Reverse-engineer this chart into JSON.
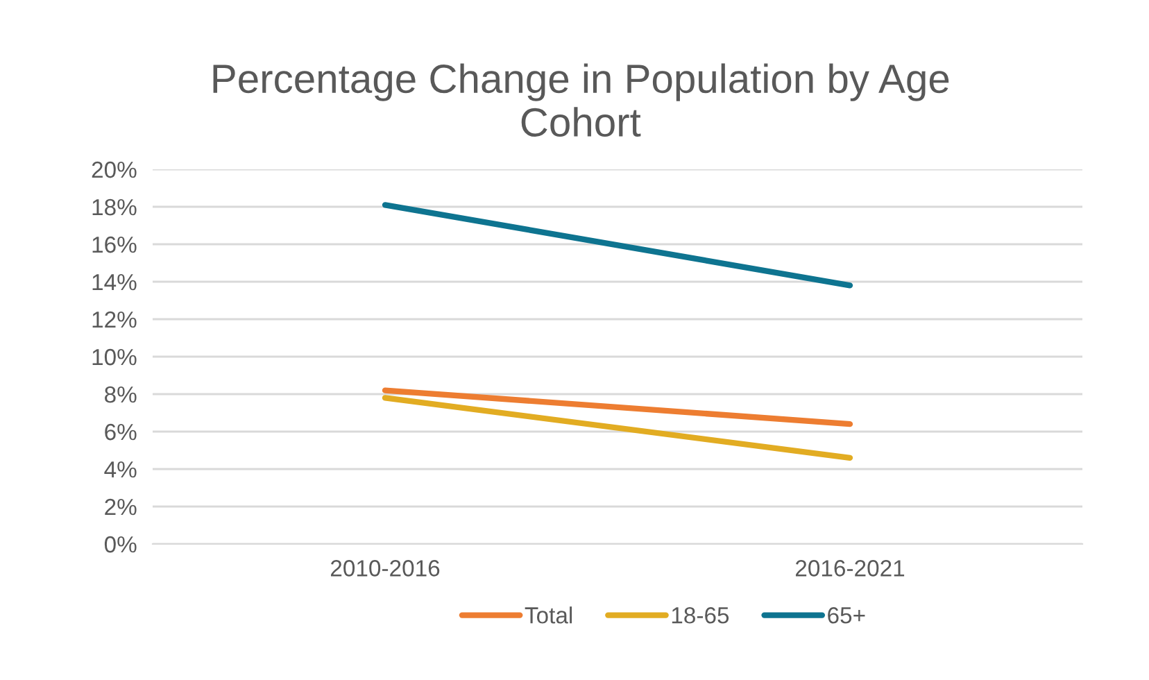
{
  "chart_data": {
    "type": "line",
    "title": "Percentage Change in Population by Age\nCohort",
    "categories": [
      "2010-2016",
      "2016-2021"
    ],
    "series": [
      {
        "name": "Total",
        "color": "#ed7d31",
        "values": [
          8.2,
          6.4
        ]
      },
      {
        "name": "18-65",
        "color": "#e2ac22",
        "values": [
          7.8,
          4.6
        ]
      },
      {
        "name": "65+",
        "color": "#0e7490",
        "values": [
          18.1,
          13.8
        ]
      }
    ],
    "ylim": [
      0,
      20
    ],
    "yticks": [
      {
        "value": 0,
        "label": "0%"
      },
      {
        "value": 2,
        "label": "2%"
      },
      {
        "value": 4,
        "label": "4%"
      },
      {
        "value": 6,
        "label": "6%"
      },
      {
        "value": 8,
        "label": "8%"
      },
      {
        "value": 10,
        "label": "10%"
      },
      {
        "value": 12,
        "label": "12%"
      },
      {
        "value": 14,
        "label": "14%"
      },
      {
        "value": 16,
        "label": "16%"
      },
      {
        "value": 18,
        "label": "18%"
      },
      {
        "value": 20,
        "label": "20%"
      }
    ],
    "grid": "y",
    "legend": "bottom",
    "marker": "none",
    "line_style": "solid"
  }
}
